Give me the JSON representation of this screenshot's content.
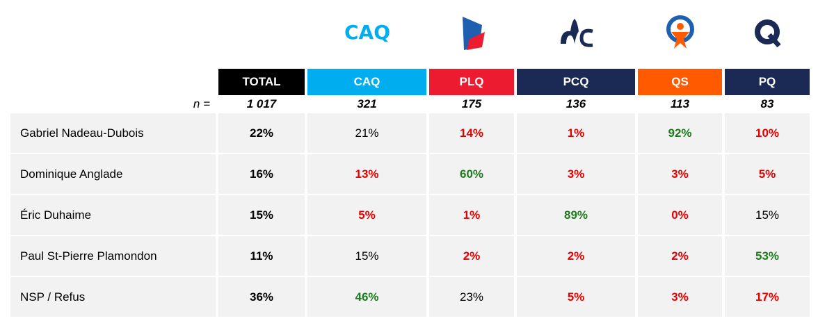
{
  "table": {
    "columns": [
      {
        "name": "TOTAL",
        "color": "#000000"
      },
      {
        "name": "CAQ",
        "color": "#00aeef"
      },
      {
        "name": "PLQ",
        "color": "#ed1b2f"
      },
      {
        "name": "PCQ",
        "color": "#1b2a54"
      },
      {
        "name": "QS",
        "color": "#ff5a00"
      },
      {
        "name": "PQ",
        "color": "#1b2a54"
      }
    ],
    "n_label": "n =",
    "n_values": [
      "1 017",
      "321",
      "175",
      "136",
      "113",
      "83"
    ],
    "rows": [
      {
        "label": "Gabriel Nadeau-Dubois",
        "cells": [
          "22%",
          "21%",
          "14%",
          "1%",
          "92%",
          "10%"
        ],
        "colors": [
          "#000000",
          "#000000",
          "#e60000",
          "#e60000",
          "#1e7b1e",
          "#e60000"
        ]
      },
      {
        "label": "Dominique Anglade",
        "cells": [
          "16%",
          "13%",
          "60%",
          "3%",
          "3%",
          "5%"
        ],
        "colors": [
          "#000000",
          "#e60000",
          "#1e7b1e",
          "#e60000",
          "#e60000",
          "#e60000"
        ]
      },
      {
        "label": "Éric Duhaime",
        "cells": [
          "15%",
          "5%",
          "1%",
          "89%",
          "0%",
          "15%"
        ],
        "colors": [
          "#000000",
          "#e60000",
          "#e60000",
          "#1e7b1e",
          "#e60000",
          "#000000"
        ]
      },
      {
        "label": "Paul St-Pierre Plamondon",
        "cells": [
          "11%",
          "15%",
          "2%",
          "2%",
          "2%",
          "53%"
        ],
        "colors": [
          "#000000",
          "#000000",
          "#e60000",
          "#e60000",
          "#e60000",
          "#1e7b1e"
        ]
      },
      {
        "label": "NSP / Refus",
        "cells": [
          "36%",
          "46%",
          "23%",
          "5%",
          "3%",
          "17%"
        ],
        "colors": [
          "#000000",
          "#1e7b1e",
          "#000000",
          "#e60000",
          "#e60000",
          "#e60000"
        ]
      }
    ]
  }
}
